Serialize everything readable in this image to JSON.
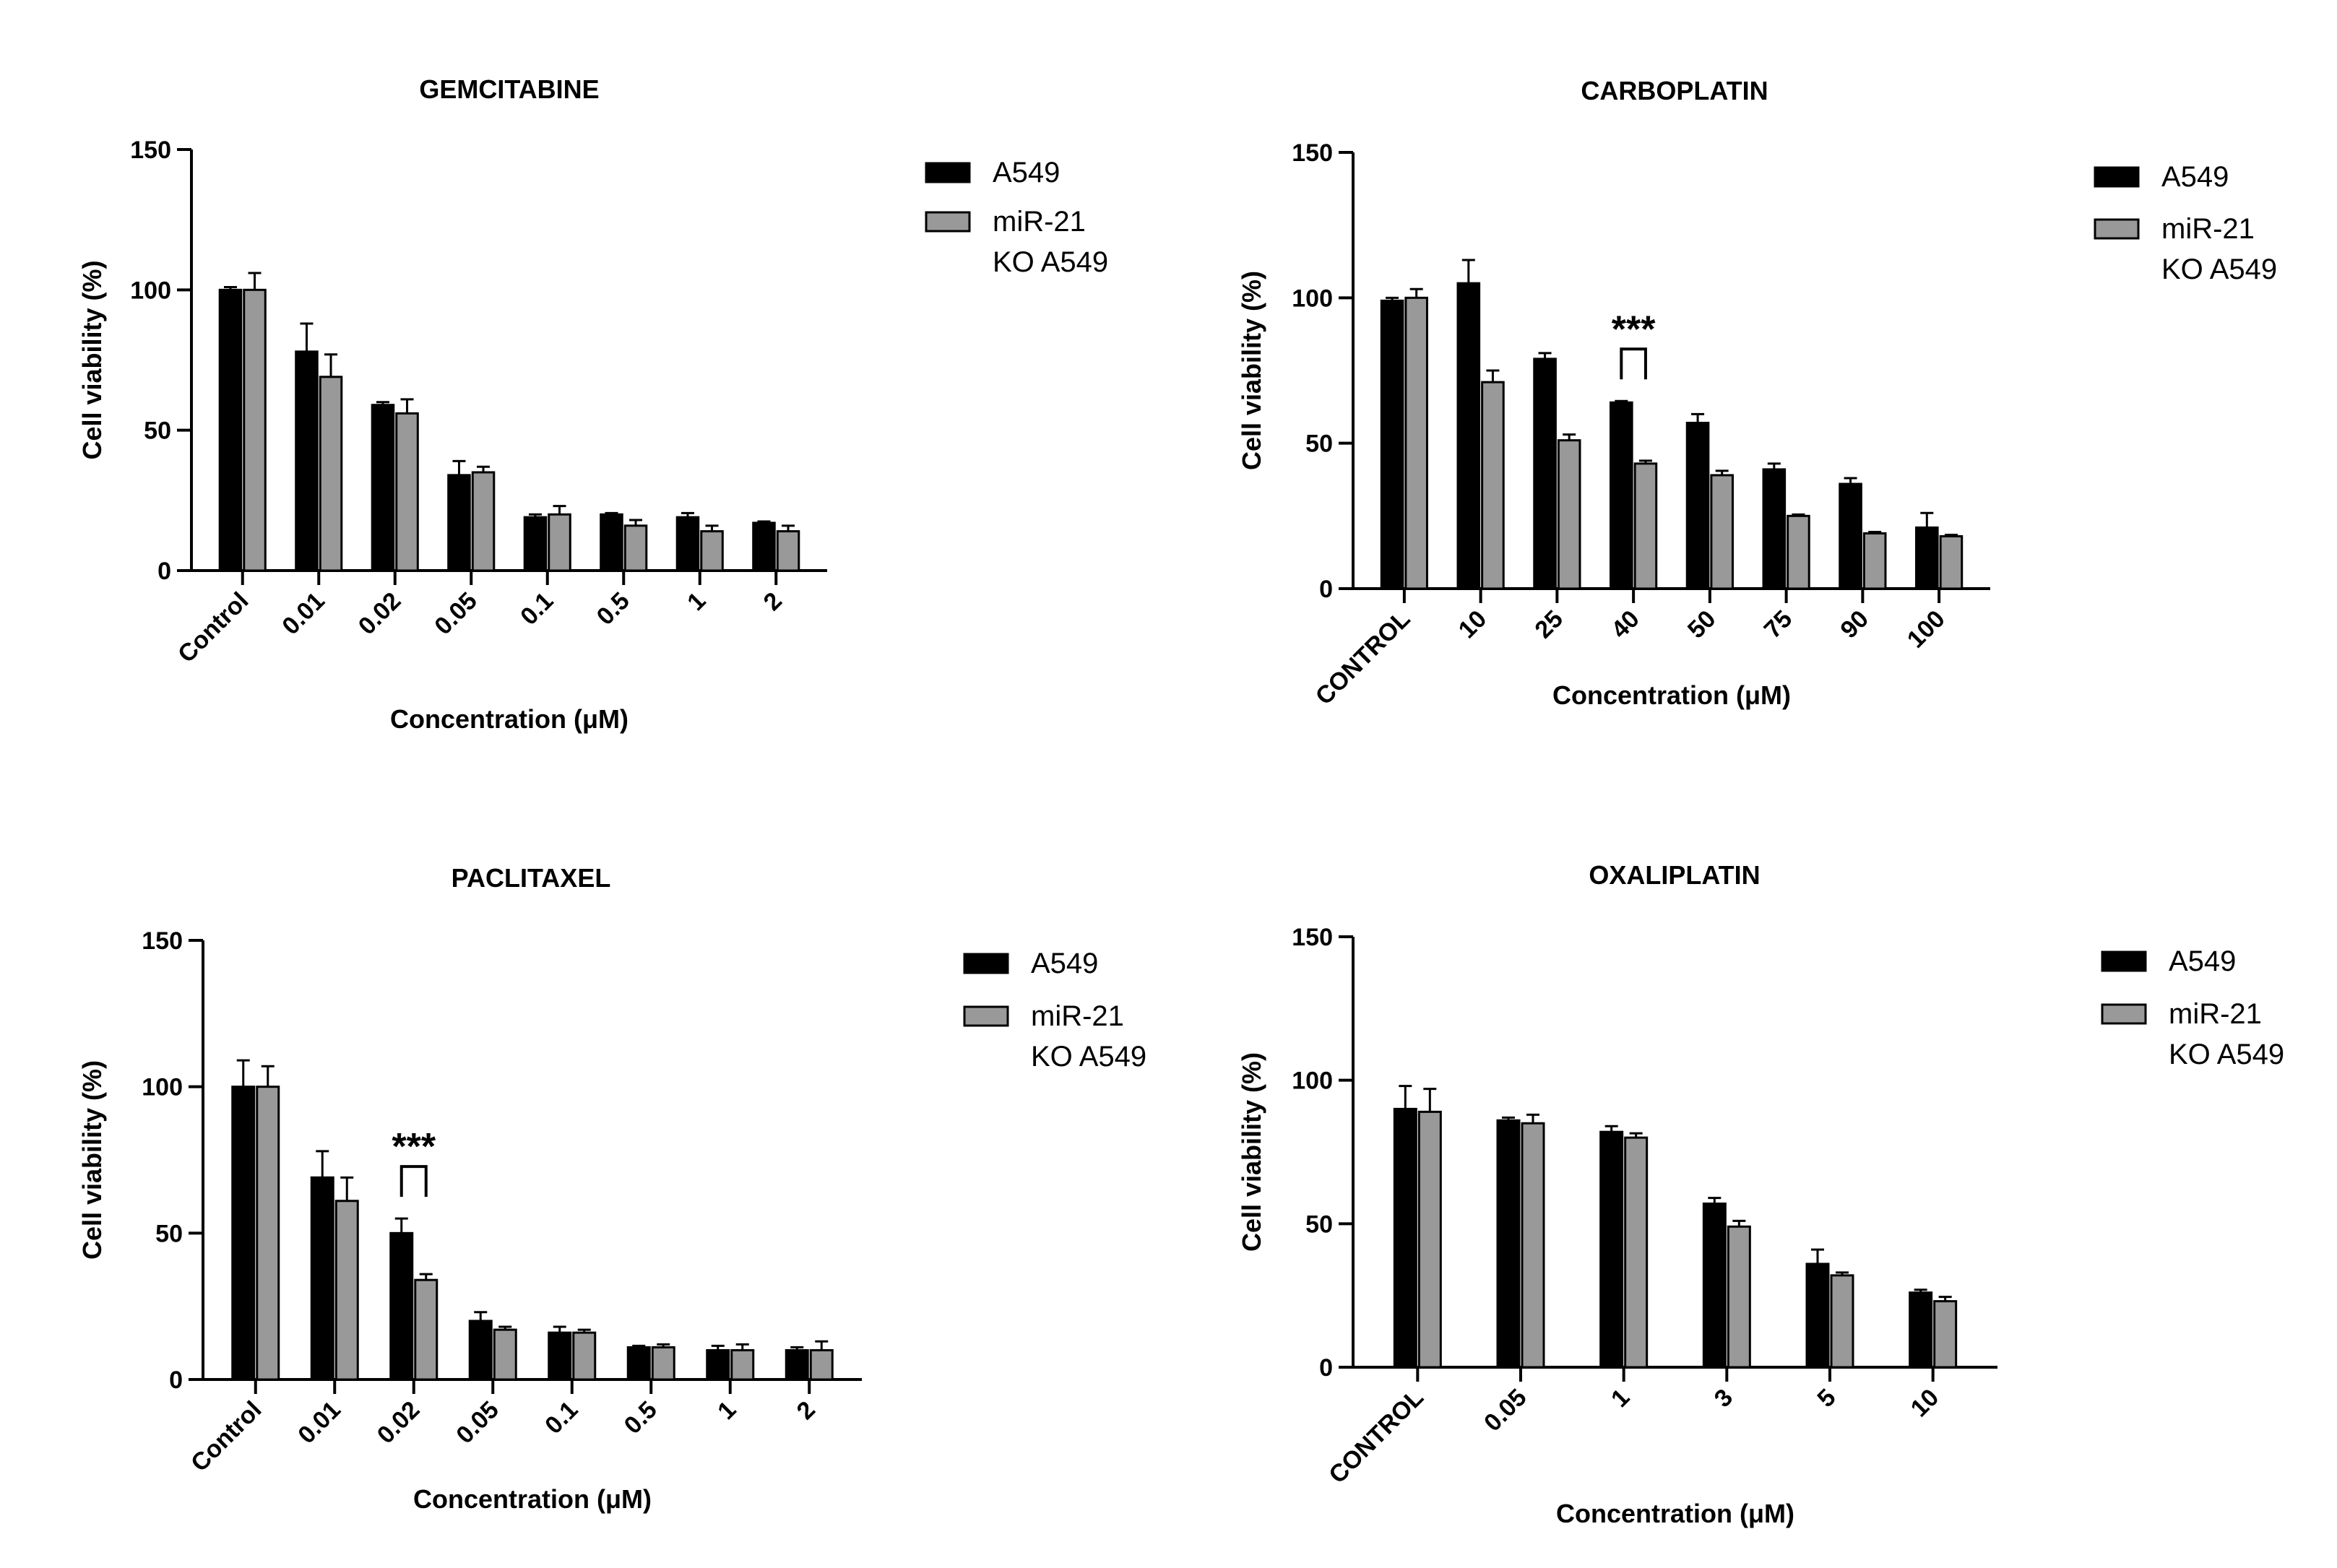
{
  "colors": {
    "series_a": "#000000",
    "series_b": "#999999",
    "axis": "#000000"
  },
  "chart_data": [
    {
      "id": "gemcitabine",
      "type": "bar",
      "title": "GEMCITABINE",
      "xlabel": "Concentration (μM)",
      "ylabel": "Cell viability (%)",
      "ylim": [
        0,
        150
      ],
      "yticks": [
        0,
        50,
        100,
        150
      ],
      "categories": [
        "Control",
        "0.01",
        "0.02",
        "0.05",
        "0.1",
        "0.5",
        "1",
        "2"
      ],
      "series": [
        {
          "name": "A549",
          "values": [
            100,
            78,
            59,
            34,
            19,
            20,
            19,
            17
          ],
          "errors": [
            1,
            10,
            1,
            5,
            1,
            0.5,
            1.5,
            0.5
          ]
        },
        {
          "name": "miR-21\nKO A549",
          "values": [
            100,
            69,
            56,
            35,
            20,
            16,
            14,
            14
          ],
          "errors": [
            6,
            8,
            5,
            2,
            3,
            2,
            2,
            2
          ]
        }
      ],
      "legend_items": [
        {
          "name": "A549"
        },
        {
          "name": "miR-21",
          "name2": "KO A549"
        }
      ],
      "significance": []
    },
    {
      "id": "carboplatin",
      "type": "bar",
      "title": "CARBOPLATIN",
      "xlabel": "Concentration (μM)",
      "ylabel": "Cell viability (%)",
      "ylim": [
        0,
        150
      ],
      "yticks": [
        0,
        50,
        100,
        150
      ],
      "categories": [
        "CONTROL",
        "10",
        "25",
        "40",
        "50",
        "75",
        "90",
        "100"
      ],
      "series": [
        {
          "name": "A549",
          "values": [
            99,
            105,
            79,
            64,
            57,
            41,
            36,
            21
          ],
          "errors": [
            1,
            8,
            2,
            0.5,
            3,
            2,
            2,
            5
          ]
        },
        {
          "name": "miR-21\nKO A549",
          "values": [
            100,
            71,
            51,
            43,
            39,
            25,
            19,
            18
          ],
          "errors": [
            3,
            4,
            2,
            1,
            1.5,
            0.5,
            0.5,
            0.5
          ]
        }
      ],
      "legend_items": [
        {
          "name": "A549"
        },
        {
          "name": "miR-21",
          "name2": "KO A549"
        }
      ],
      "significance": [
        {
          "category": "40",
          "label": "***"
        }
      ]
    },
    {
      "id": "paclitaxel",
      "type": "bar",
      "title": "PACLITAXEL",
      "xlabel": "Concentration (μM)",
      "ylabel": "Cell viability (%)",
      "ylim": [
        0,
        150
      ],
      "yticks": [
        0,
        50,
        100,
        150
      ],
      "categories": [
        "Control",
        "0.01",
        "0.02",
        "0.05",
        "0.1",
        "0.5",
        "1",
        "2"
      ],
      "series": [
        {
          "name": "A549",
          "values": [
            100,
            69,
            50,
            20,
            16,
            11,
            10,
            10
          ],
          "errors": [
            9,
            9,
            5,
            3,
            2,
            0.5,
            1.5,
            1
          ]
        },
        {
          "name": "miR-21\nKO A549",
          "values": [
            100,
            61,
            34,
            17,
            16,
            11,
            10,
            10
          ],
          "errors": [
            7,
            8,
            2,
            1,
            1,
            1,
            2,
            3
          ]
        }
      ],
      "legend_items": [
        {
          "name": "A549"
        },
        {
          "name": "miR-21",
          "name2": "KO A549"
        }
      ],
      "significance": [
        {
          "category": "0.02",
          "label": "***"
        }
      ]
    },
    {
      "id": "oxaliplatin",
      "type": "bar",
      "title": "OXALIPLATIN",
      "xlabel": "Concentration (μM)",
      "ylabel": "Cell viability (%)",
      "ylim": [
        0,
        150
      ],
      "yticks": [
        0,
        50,
        100,
        150
      ],
      "categories": [
        "CONTROL",
        "0.05",
        "1",
        "3",
        "5",
        "10"
      ],
      "series": [
        {
          "name": "A549",
          "values": [
            90,
            86,
            82,
            57,
            36,
            26
          ],
          "errors": [
            8,
            1,
            2,
            2,
            5,
            1
          ]
        },
        {
          "name": "miR-21\nKO A549",
          "values": [
            89,
            85,
            80,
            49,
            32,
            23
          ],
          "errors": [
            8,
            3,
            1.5,
            2,
            1,
            1.5
          ]
        }
      ],
      "legend_items": [
        {
          "name": "A549"
        },
        {
          "name": "miR-21",
          "name2": "KO A549"
        }
      ],
      "significance": []
    }
  ]
}
